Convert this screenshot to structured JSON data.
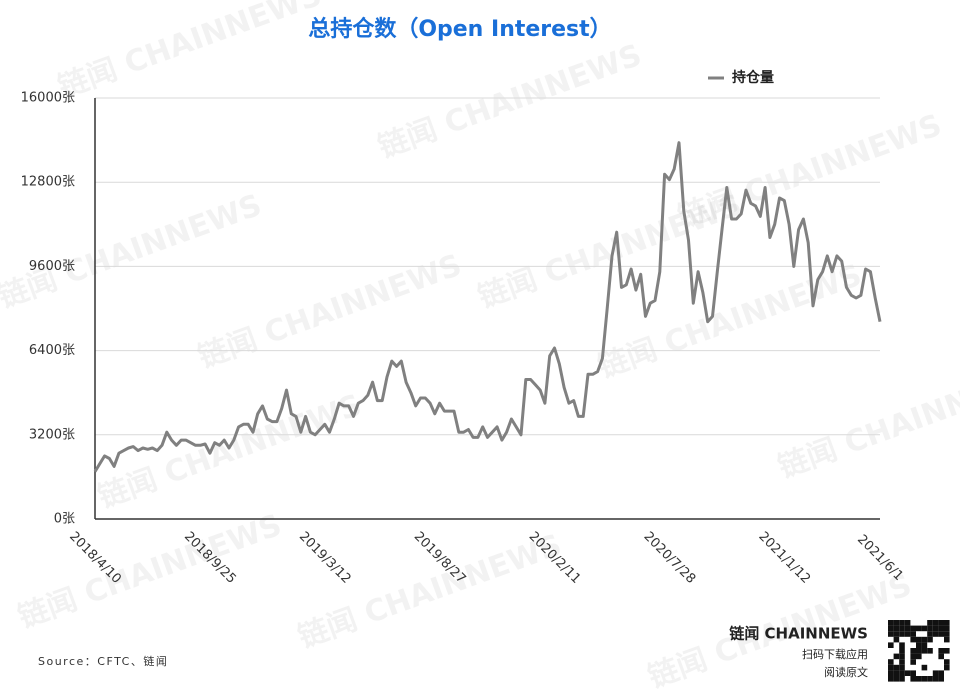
{
  "chart_data": {
    "type": "line",
    "title": "总持仓数（Open Interest）",
    "categories": [
      "2018/4/10",
      null,
      null,
      null,
      null,
      null,
      null,
      null,
      null,
      null,
      null,
      null,
      null,
      null,
      null,
      null,
      null,
      null,
      null,
      null,
      null,
      null,
      null,
      null,
      "2018/9/25",
      null,
      null,
      null,
      null,
      null,
      null,
      null,
      null,
      null,
      null,
      null,
      null,
      null,
      null,
      null,
      null,
      null,
      null,
      null,
      null,
      null,
      null,
      null,
      "2019/3/12",
      null,
      null,
      null,
      null,
      null,
      null,
      null,
      null,
      null,
      null,
      null,
      null,
      null,
      null,
      null,
      null,
      null,
      null,
      null,
      null,
      null,
      null,
      null,
      "2019/8/27",
      null,
      null,
      null,
      null,
      null,
      null,
      null,
      null,
      null,
      null,
      null,
      null,
      null,
      null,
      null,
      null,
      null,
      null,
      null,
      null,
      null,
      null,
      null,
      "2020/2/11",
      null,
      null,
      null,
      null,
      null,
      null,
      null,
      null,
      null,
      null,
      null,
      null,
      null,
      null,
      null,
      null,
      null,
      null,
      null,
      null,
      null,
      null,
      null,
      "2020/7/28",
      null,
      null,
      null,
      null,
      null,
      null,
      null,
      null,
      null,
      null,
      null,
      null,
      null,
      null,
      null,
      null,
      null,
      null,
      null,
      null,
      null,
      null,
      null,
      "2021/1/12",
      null,
      null,
      null,
      null,
      null,
      null,
      null,
      null,
      null,
      null,
      null,
      null,
      null,
      null,
      null,
      null,
      null,
      null,
      null,
      "2021/6/1"
    ],
    "series": [
      {
        "name": "持仓量",
        "color": "#808080",
        "values": [
          1800,
          2100,
          2400,
          2300,
          2000,
          2500,
          2600,
          2700,
          2750,
          2600,
          2700,
          2650,
          2700,
          2600,
          2800,
          3300,
          3000,
          2800,
          3000,
          3000,
          2900,
          2800,
          2800,
          2850,
          2500,
          2900,
          2800,
          3000,
          2700,
          3000,
          3500,
          3600,
          3600,
          3300,
          4000,
          4300,
          3800,
          3700,
          3700,
          4200,
          4900,
          4000,
          3900,
          3300,
          3900,
          3300,
          3200,
          3400,
          3600,
          3300,
          3800,
          4400,
          4300,
          4300,
          3900,
          4400,
          4500,
          4700,
          5200,
          4500,
          4500,
          5400,
          6000,
          5800,
          6000,
          5200,
          4800,
          4300,
          4600,
          4600,
          4400,
          4000,
          4400,
          4100,
          4100,
          4100,
          3300,
          3300,
          3400,
          3100,
          3100,
          3500,
          3100,
          3300,
          3500,
          3000,
          3300,
          3800,
          3500,
          3200,
          5300,
          5300,
          5100,
          4900,
          4400,
          6200,
          6500,
          5900,
          5000,
          4400,
          4500,
          3900,
          3900,
          5500,
          5500,
          5600,
          6100,
          8000,
          10000,
          10900,
          8800,
          8900,
          9500,
          8700,
          9300,
          7700,
          8200,
          8300,
          9400,
          13100,
          12900,
          13300,
          14300,
          11700,
          10600,
          8200,
          9400,
          8600,
          7500,
          7700,
          9400,
          11000,
          12600,
          11400,
          11400,
          11600,
          12500,
          12000,
          11900,
          11500,
          12600,
          10700,
          11200,
          12200,
          12100,
          11200,
          9600,
          11000,
          11400,
          10500,
          8100,
          9100,
          9400,
          10000,
          9400,
          10000,
          9800,
          8800,
          8500,
          8400,
          8500,
          9500,
          9400,
          8400,
          7500
        ]
      }
    ],
    "ylim": [
      0,
      16000
    ],
    "yticks": [
      {
        "value": 0,
        "label": "0张"
      },
      {
        "value": 3200,
        "label": "3200张"
      },
      {
        "value": 6400,
        "label": "6400张"
      },
      {
        "value": 9600,
        "label": "9600张"
      },
      {
        "value": 12800,
        "label": "12800张"
      },
      {
        "value": 16000,
        "label": "16000张"
      }
    ],
    "grid": true,
    "legend": "top-right",
    "source": "Source：CFTC、链闻",
    "brand": "链闻 CHAINNEWS",
    "app_download": "扫码下载应用",
    "read_original": "阅读原文",
    "watermark": "链闻 CHAINNEWS"
  }
}
